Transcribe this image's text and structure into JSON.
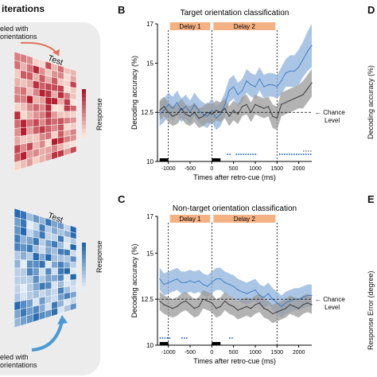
{
  "panel_a": {
    "header": "iterations",
    "label_top": "eled with\norientations",
    "label_bottom": "eled with\norientations",
    "test_label_top": "Test",
    "test_label_bottom": "Test",
    "response_label_top": "Response",
    "response_label_bottom": "Response",
    "colors": {
      "red_dark": "#b2182b",
      "red_light": "#fbe3d6",
      "blue_dark": "#2166ac",
      "blue_light": "#e7eef7"
    }
  },
  "letters": {
    "b": "B",
    "c": "C",
    "d": "D",
    "e": "E"
  },
  "clipped_labels": {
    "d_ylabel": "Decoding accuracy (%)",
    "e_ylabel": "Response Error (degree)"
  },
  "chance_label": "← Chance\nLevel",
  "chart_data": [
    {
      "type": "line",
      "title": "Target orientation classification",
      "xlabel": "Times after retro-cue (ms)",
      "ylabel": "Decoding accuracy (%)",
      "xlim": [
        -1250,
        2300
      ],
      "ylim": [
        10,
        17
      ],
      "yticks": [
        10,
        12.5,
        15,
        17
      ],
      "xticks": [
        -1000,
        -500,
        0,
        500,
        1000,
        1500,
        2000
      ],
      "chance_level": 12.5,
      "epochs": [
        {
          "label": "Delay 1",
          "start": -1000,
          "end": 0
        },
        {
          "label": "Delay 2",
          "start": 0,
          "end": 1500
        }
      ],
      "x": [
        -1200,
        -1100,
        -1000,
        -900,
        -800,
        -700,
        -600,
        -500,
        -400,
        -300,
        -200,
        -100,
        0,
        100,
        200,
        300,
        400,
        500,
        600,
        700,
        800,
        900,
        1000,
        1100,
        1200,
        1300,
        1400,
        1500,
        1600,
        1700,
        1800,
        1900,
        2000,
        2100,
        2200,
        2300
      ],
      "series": [
        {
          "color": "#3a78c2",
          "fill": "#8fb3dc",
          "values": [
            12.4,
            12.6,
            12.9,
            12.7,
            13.0,
            12.6,
            12.8,
            12.5,
            12.9,
            12.6,
            12.4,
            12.3,
            12.6,
            12.2,
            12.4,
            12.9,
            13.6,
            13.8,
            13.4,
            13.6,
            14.1,
            13.9,
            13.8,
            14.2,
            13.8,
            13.9,
            13.9,
            13.8,
            14.1,
            14.5,
            14.6,
            14.6,
            14.8,
            15.2,
            15.6,
            15.9
          ],
          "ci": [
            0.6,
            0.6,
            0.6,
            0.6,
            0.6,
            0.6,
            0.6,
            0.6,
            0.6,
            0.6,
            0.6,
            0.6,
            0.6,
            0.6,
            0.6,
            0.6,
            0.6,
            0.6,
            0.6,
            0.6,
            0.6,
            0.6,
            0.6,
            0.6,
            0.6,
            0.6,
            0.6,
            0.6,
            0.7,
            0.7,
            0.8,
            0.8,
            0.9,
            0.9,
            1.0,
            1.1
          ]
        },
        {
          "color": "#333333",
          "fill": "#9a9a9a",
          "values": [
            12.6,
            12.8,
            12.5,
            12.3,
            12.4,
            12.7,
            12.4,
            12.3,
            12.5,
            12.2,
            12.3,
            12.5,
            12.4,
            12.6,
            12.5,
            12.7,
            12.3,
            12.6,
            12.4,
            12.8,
            12.9,
            12.5,
            12.9,
            12.8,
            12.7,
            12.8,
            12.3,
            12.2,
            12.9,
            13.0,
            13.1,
            13.2,
            13.3,
            13.4,
            13.7,
            14.0
          ],
          "ci": [
            0.5,
            0.5,
            0.5,
            0.5,
            0.5,
            0.5,
            0.5,
            0.5,
            0.5,
            0.5,
            0.5,
            0.5,
            0.5,
            0.5,
            0.5,
            0.5,
            0.5,
            0.5,
            0.5,
            0.5,
            0.5,
            0.5,
            0.5,
            0.5,
            0.5,
            0.5,
            0.6,
            0.6,
            0.6,
            0.6,
            0.6,
            0.6,
            0.6,
            0.7,
            0.7,
            0.7
          ]
        }
      ],
      "sig_bars": [
        {
          "color": "#3a78c2",
          "start": 350,
          "end": 450,
          "row": 0
        },
        {
          "color": "#3a78c2",
          "start": 550,
          "end": 1050,
          "row": 0
        },
        {
          "color": "#3a78c2",
          "start": 1550,
          "end": 2300,
          "row": 0
        },
        {
          "color": "#9a9a9a",
          "start": 2100,
          "end": 2300,
          "row": 1
        }
      ]
    },
    {
      "type": "line",
      "title": "Non-target orientation classification",
      "xlabel": "Times after retro-cue (ms)",
      "ylabel": "Decoding accuracy (%)",
      "xlim": [
        -1250,
        2300
      ],
      "ylim": [
        10,
        17
      ],
      "yticks": [
        10,
        12.5,
        15,
        17
      ],
      "xticks": [
        -1000,
        -500,
        0,
        500,
        1000,
        1500,
        2000
      ],
      "chance_level": 12.5,
      "epochs": [
        {
          "label": "Delay 1",
          "start": -1000,
          "end": 0
        },
        {
          "label": "Delay 2",
          "start": 0,
          "end": 1500
        }
      ],
      "x": [
        -1200,
        -1100,
        -1000,
        -900,
        -800,
        -700,
        -600,
        -500,
        -400,
        -300,
        -200,
        -100,
        0,
        100,
        200,
        300,
        400,
        500,
        600,
        700,
        800,
        900,
        1000,
        1100,
        1200,
        1300,
        1400,
        1500,
        1600,
        1700,
        1800,
        1900,
        2000,
        2100,
        2200,
        2300
      ],
      "series": [
        {
          "color": "#3a78c2",
          "fill": "#8fb3dc",
          "values": [
            13.6,
            13.3,
            13.4,
            13.5,
            13.6,
            13.4,
            13.4,
            13.5,
            13.4,
            13.5,
            13.3,
            13.2,
            13.4,
            13.6,
            13.6,
            13.4,
            13.3,
            13.2,
            13.0,
            12.9,
            12.8,
            12.9,
            13.0,
            12.7,
            12.6,
            12.8,
            12.5,
            12.3,
            12.1,
            12.3,
            12.4,
            12.5,
            12.5,
            12.6,
            12.7,
            12.7
          ],
          "ci": [
            0.6,
            0.6,
            0.6,
            0.6,
            0.6,
            0.6,
            0.6,
            0.6,
            0.6,
            0.6,
            0.6,
            0.6,
            0.6,
            0.6,
            0.6,
            0.6,
            0.6,
            0.6,
            0.6,
            0.6,
            0.6,
            0.6,
            0.6,
            0.6,
            0.6,
            0.6,
            0.6,
            0.6,
            0.6,
            0.6,
            0.6,
            0.6,
            0.6,
            0.6,
            0.6,
            0.6
          ]
        },
        {
          "color": "#333333",
          "fill": "#9a9a9a",
          "values": [
            12.4,
            12.2,
            12.1,
            12.0,
            12.1,
            12.3,
            12.4,
            12.2,
            12.0,
            12.1,
            12.5,
            12.4,
            12.3,
            12.0,
            12.1,
            12.4,
            12.2,
            12.1,
            11.9,
            12.0,
            12.1,
            12.0,
            12.2,
            12.3,
            12.0,
            11.9,
            11.7,
            11.8,
            11.9,
            12.0,
            12.2,
            12.1,
            12.0,
            12.2,
            12.3,
            12.2
          ],
          "ci": [
            0.5,
            0.5,
            0.5,
            0.5,
            0.5,
            0.5,
            0.5,
            0.5,
            0.5,
            0.5,
            0.5,
            0.5,
            0.5,
            0.5,
            0.5,
            0.5,
            0.5,
            0.5,
            0.5,
            0.5,
            0.5,
            0.5,
            0.5,
            0.5,
            0.5,
            0.5,
            0.5,
            0.5,
            0.5,
            0.5,
            0.5,
            0.5,
            0.5,
            0.5,
            0.5,
            0.5
          ]
        }
      ],
      "sig_bars": [
        {
          "color": "#3a78c2",
          "start": -1200,
          "end": -950,
          "row": 0
        },
        {
          "color": "#3a78c2",
          "start": -700,
          "end": -550,
          "row": 0
        },
        {
          "color": "#3a78c2",
          "start": 400,
          "end": 500,
          "row": 0
        }
      ]
    }
  ]
}
